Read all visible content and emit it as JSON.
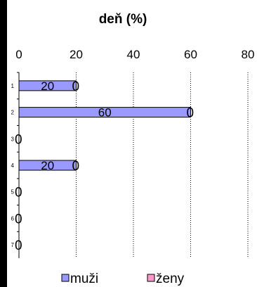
{
  "chart_data": {
    "type": "bar",
    "orientation": "horizontal",
    "title": "deň (%)",
    "categories": [
      "1",
      "2",
      "3",
      "4",
      "5",
      "6",
      "7"
    ],
    "series": [
      {
        "name": "muži",
        "values": [
          20,
          60,
          0,
          20,
          0,
          0,
          0
        ],
        "color": "#9999ff"
      },
      {
        "name": "ženy",
        "values": [
          0,
          0,
          0,
          0,
          0,
          0,
          0
        ],
        "color": "#ff99cc"
      }
    ],
    "xlim": [
      0,
      80
    ],
    "xticks": [
      "0",
      "20",
      "40",
      "60",
      "80"
    ],
    "grid": "vertical dotted",
    "legend": "bottom",
    "data_labels": true,
    "left_edge_color": "#000000"
  }
}
